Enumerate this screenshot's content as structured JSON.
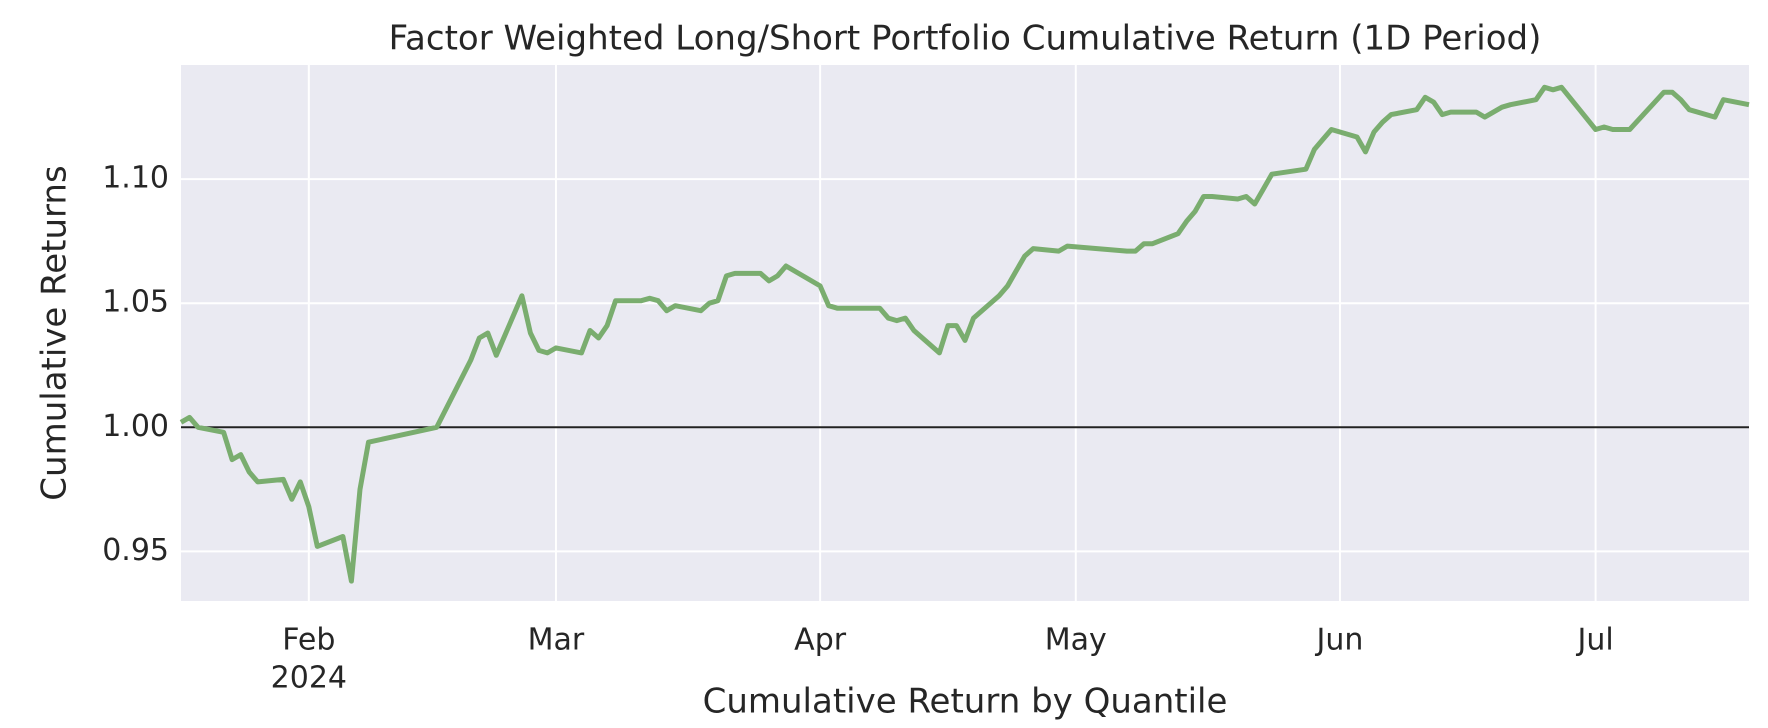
{
  "chart_data": {
    "type": "line",
    "title": "Factor Weighted Long/Short Portfolio Cumulative Return (1D Period)",
    "x_label": "Cumulative Return by Quantile",
    "y_label": "Cumulative Returns",
    "color": "#7aad6f",
    "grid": true,
    "hline": 1,
    "x": [
      "2024-01-17",
      "2024-01-18",
      "2024-01-19",
      "2024-01-22",
      "2024-01-23",
      "2024-01-24",
      "2024-01-25",
      "2024-01-26",
      "2024-01-29",
      "2024-01-30",
      "2024-01-31",
      "2024-02-01",
      "2024-02-02",
      "2024-02-05",
      "2024-02-06",
      "2024-02-07",
      "2024-02-08",
      "2024-02-16",
      "2024-02-20",
      "2024-02-21",
      "2024-02-22",
      "2024-02-23",
      "2024-02-26",
      "2024-02-27",
      "2024-02-28",
      "2024-02-29",
      "2024-03-01",
      "2024-03-04",
      "2024-03-05",
      "2024-03-06",
      "2024-03-07",
      "2024-03-08",
      "2024-03-11",
      "2024-03-12",
      "2024-03-13",
      "2024-03-14",
      "2024-03-15",
      "2024-03-18",
      "2024-03-19",
      "2024-03-20",
      "2024-03-21",
      "2024-03-22",
      "2024-03-25",
      "2024-03-26",
      "2024-03-27",
      "2024-03-28",
      "2024-04-01",
      "2024-04-02",
      "2024-04-03",
      "2024-04-08",
      "2024-04-09",
      "2024-04-10",
      "2024-04-11",
      "2024-04-12",
      "2024-04-15",
      "2024-04-16",
      "2024-04-17",
      "2024-04-18",
      "2024-04-19",
      "2024-04-22",
      "2024-04-23",
      "2024-04-24",
      "2024-04-25",
      "2024-04-26",
      "2024-04-29",
      "2024-04-30",
      "2024-05-07",
      "2024-05-08",
      "2024-05-09",
      "2024-05-10",
      "2024-05-13",
      "2024-05-14",
      "2024-05-15",
      "2024-05-16",
      "2024-05-17",
      "2024-05-20",
      "2024-05-21",
      "2024-05-22",
      "2024-05-23",
      "2024-05-24",
      "2024-05-28",
      "2024-05-29",
      "2024-05-30",
      "2024-05-31",
      "2024-06-03",
      "2024-06-04",
      "2024-06-05",
      "2024-06-06",
      "2024-06-07",
      "2024-06-10",
      "2024-06-11",
      "2024-06-12",
      "2024-06-13",
      "2024-06-14",
      "2024-06-17",
      "2024-06-18",
      "2024-06-20",
      "2024-06-21",
      "2024-06-24",
      "2024-06-25",
      "2024-06-26",
      "2024-06-27",
      "2024-07-01",
      "2024-07-02",
      "2024-07-03",
      "2024-07-05",
      "2024-07-09",
      "2024-07-10",
      "2024-07-11",
      "2024-07-12",
      "2024-07-15",
      "2024-07-16",
      "2024-07-19"
    ],
    "values": [
      1.002,
      1.004,
      1.0,
      0.998,
      0.987,
      0.989,
      0.982,
      0.978,
      0.979,
      0.971,
      0.978,
      0.968,
      0.952,
      0.956,
      0.938,
      0.975,
      0.994,
      1.0,
      1.027,
      1.036,
      1.038,
      1.029,
      1.053,
      1.038,
      1.031,
      1.03,
      1.032,
      1.03,
      1.039,
      1.036,
      1.041,
      1.051,
      1.051,
      1.052,
      1.051,
      1.047,
      1.049,
      1.047,
      1.05,
      1.051,
      1.061,
      1.062,
      1.062,
      1.059,
      1.061,
      1.065,
      1.057,
      1.049,
      1.048,
      1.048,
      1.044,
      1.043,
      1.044,
      1.039,
      1.03,
      1.041,
      1.041,
      1.035,
      1.044,
      1.053,
      1.057,
      1.063,
      1.069,
      1.072,
      1.071,
      1.073,
      1.071,
      1.071,
      1.074,
      1.074,
      1.078,
      1.083,
      1.087,
      1.093,
      1.093,
      1.092,
      1.093,
      1.09,
      1.096,
      1.102,
      1.104,
      1.112,
      1.116,
      1.12,
      1.117,
      1.111,
      1.119,
      1.123,
      1.126,
      1.128,
      1.133,
      1.131,
      1.126,
      1.127,
      1.127,
      1.125,
      1.129,
      1.13,
      1.132,
      1.137,
      1.136,
      1.137,
      1.12,
      1.121,
      1.12,
      1.12,
      1.135,
      1.135,
      1.132,
      1.128,
      1.125,
      1.132,
      1.13
    ],
    "xlim": [
      "2024-01-17",
      "2024-07-19"
    ],
    "xticks": [
      {
        "value": "2024-02-01",
        "label": "Feb",
        "sublabel": "2024"
      },
      {
        "value": "2024-03-01",
        "label": "Mar"
      },
      {
        "value": "2024-04-01",
        "label": "Apr"
      },
      {
        "value": "2024-05-01",
        "label": "May"
      },
      {
        "value": "2024-06-01",
        "label": "Jun"
      },
      {
        "value": "2024-07-01",
        "label": "Jul"
      }
    ],
    "ylim": [
      0.93,
      1.146
    ],
    "yticks": [
      0.95,
      {
        "value": 1,
        "label": "1.00"
      },
      1.05,
      {
        "value": 1.1,
        "label": "1.10"
      }
    ]
  }
}
